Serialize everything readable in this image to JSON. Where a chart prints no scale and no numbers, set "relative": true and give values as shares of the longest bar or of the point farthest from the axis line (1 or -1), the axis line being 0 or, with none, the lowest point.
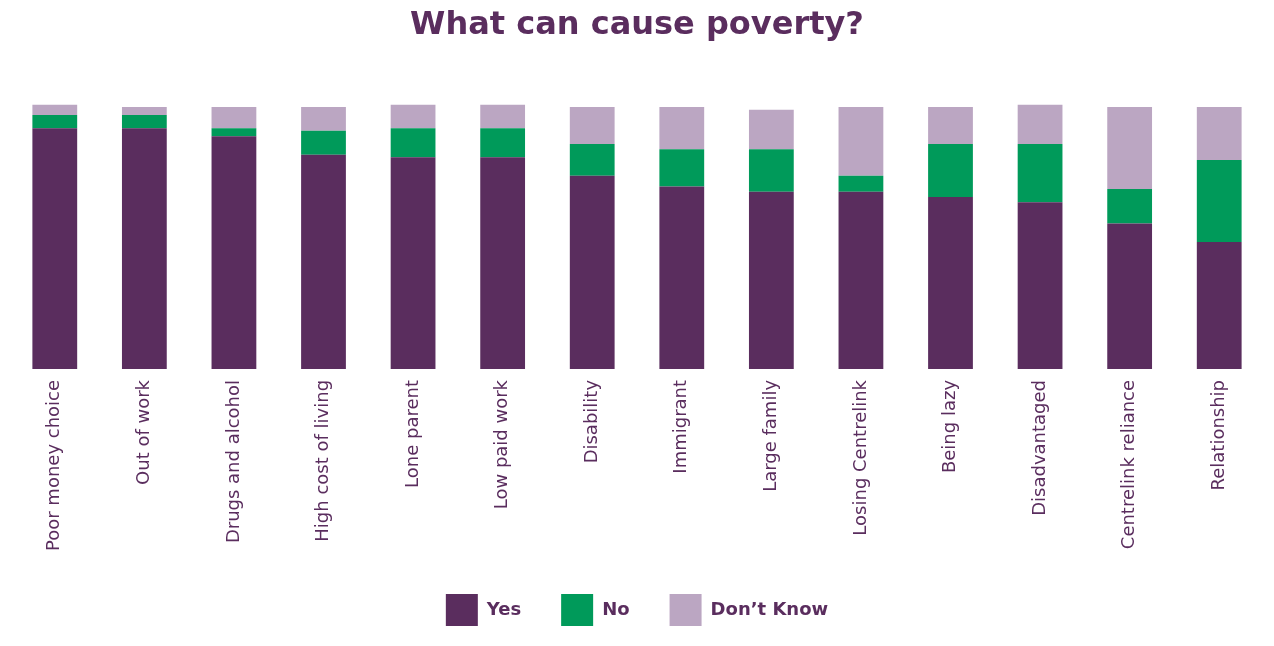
{
  "chart_data": {
    "type": "bar",
    "title": "What can cause poverty?",
    "stacked": true,
    "relative": true,
    "legend": "bottom",
    "categories": [
      "Poor money choice",
      "Out of work",
      "Drugs and alcohol",
      "High cost of living",
      "Lone parent",
      "Low paid work",
      "Disability",
      "Immigrant",
      "Large family",
      "Losing Centrelink",
      "Being lazy",
      "Disadvantaged",
      "Centrelink reliance",
      "Relationship"
    ],
    "series": [
      {
        "name": "Yes",
        "color": "#5a2d5e",
        "values": [
          0.91,
          0.91,
          0.88,
          0.81,
          0.8,
          0.8,
          0.73,
          0.69,
          0.67,
          0.67,
          0.65,
          0.63,
          0.55,
          0.48
        ]
      },
      {
        "name": "No",
        "color": "#009a5a",
        "values": [
          0.05,
          0.05,
          0.03,
          0.09,
          0.11,
          0.11,
          0.12,
          0.14,
          0.16,
          0.06,
          0.2,
          0.22,
          0.13,
          0.31
        ]
      },
      {
        "name": "Don’t Know",
        "color": "#bba6c2",
        "values": [
          0.04,
          0.03,
          0.08,
          0.09,
          0.09,
          0.09,
          0.14,
          0.16,
          0.15,
          0.26,
          0.14,
          0.15,
          0.31,
          0.2
        ]
      }
    ]
  }
}
